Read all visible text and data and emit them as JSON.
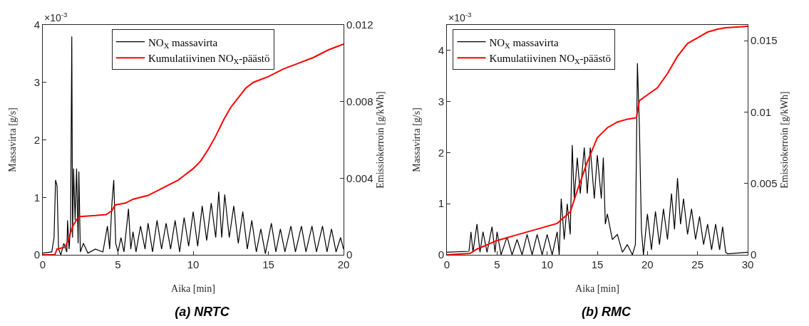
{
  "chart_data": [
    {
      "type": "line",
      "title": "(a) NRTC",
      "xlabel": "Aika [min]",
      "ylabel": "Massavirta [g/s]",
      "y2label": "Emissiokerroin [g/kWh]",
      "annotations": [
        "×10$^{-3}$"
      ],
      "legend": "top",
      "xlim": [
        0,
        20
      ],
      "xticks": [
        0,
        5,
        10,
        15,
        20
      ],
      "ylim": [
        0,
        4
      ],
      "yticks": [
        0,
        1,
        2,
        3,
        4
      ],
      "y2lim": [
        0,
        0.012
      ],
      "y2ticks": [
        0,
        0.004,
        0.008,
        0.012
      ],
      "series": [
        {
          "name": "NO$_{X}$ massavirta",
          "color": "#000000",
          "x": [
            0,
            0.6,
            0.75,
            0.85,
            0.95,
            1.05,
            1.2,
            1.4,
            1.6,
            1.65,
            1.75,
            1.85,
            1.93,
            1.98,
            2.05,
            2.15,
            2.25,
            2.35,
            2.4,
            2.5,
            2.7,
            3,
            3.5,
            4,
            4.3,
            4.45,
            4.6,
            4.72,
            4.85,
            5,
            5.2,
            5.4,
            5.7,
            5.85,
            6,
            6.2,
            6.5,
            6.8,
            7,
            7.3,
            7.6,
            7.9,
            8.2,
            8.5,
            8.8,
            9.1,
            9.4,
            9.7,
            10,
            10.3,
            10.6,
            10.9,
            11.2,
            11.5,
            11.7,
            11.9,
            12.1,
            12.4,
            12.7,
            13,
            13.3,
            13.6,
            13.9,
            14.2,
            14.5,
            14.8,
            15.2,
            15.5,
            15.8,
            16.1,
            16.5,
            16.8,
            17.2,
            17.5,
            17.9,
            18.2,
            18.6,
            18.9,
            19.2,
            19.5,
            19.8,
            20
          ],
          "values": [
            0.03,
            0.05,
            0.3,
            1.3,
            1.2,
            0.1,
            0,
            0.2,
            0.05,
            0.6,
            0.1,
            0.5,
            3.8,
            0.3,
            1.5,
            0.6,
            1.5,
            0.2,
            1.45,
            0.05,
            0.2,
            0.03,
            0.1,
            0.05,
            0.5,
            0.1,
            0.9,
            1.3,
            0.2,
            0.05,
            0.3,
            0.05,
            0.8,
            0.1,
            0.4,
            0.05,
            0.5,
            0.1,
            0.55,
            0.05,
            0.6,
            0.1,
            0.55,
            0.1,
            0.6,
            0.05,
            0.65,
            0.15,
            0.75,
            0.15,
            0.85,
            0.25,
            0.9,
            0.3,
            1.1,
            0.3,
            1.05,
            0.3,
            0.85,
            0.2,
            0.75,
            0.1,
            0.6,
            0.05,
            0.45,
            0.02,
            0.55,
            0.05,
            0.45,
            0.05,
            0.5,
            0.05,
            0.5,
            0.05,
            0.5,
            0.05,
            0.5,
            0.05,
            0.45,
            0.05,
            0.3,
            0.1
          ]
        },
        {
          "name": "Kumulatiivinen NO$_{X}$-päästö",
          "color": "#ff0000",
          "axis": "y2",
          "x": [
            0,
            0.8,
            0.95,
            1.5,
            1.7,
            2,
            2.3,
            2.5,
            3.5,
            4.2,
            4.6,
            4.8,
            5.5,
            6,
            7,
            8,
            9,
            10,
            10.5,
            11,
            11.5,
            12,
            12.5,
            13,
            13.5,
            14,
            15,
            16,
            17,
            18,
            19,
            20
          ],
          "values": [
            0,
            0,
            0.0003,
            0.0004,
            0.0008,
            0.0015,
            0.0019,
            0.002,
            0.00205,
            0.0021,
            0.0023,
            0.0026,
            0.0027,
            0.0029,
            0.0031,
            0.0035,
            0.0039,
            0.0045,
            0.0049,
            0.0055,
            0.0062,
            0.007,
            0.0077,
            0.0082,
            0.0087,
            0.009,
            0.0093,
            0.0097,
            0.01,
            0.0103,
            0.0107,
            0.011
          ]
        }
      ]
    },
    {
      "type": "line",
      "title": "(b) RMC",
      "xlabel": "Aika [min]",
      "ylabel": "Massavirta [g/s]",
      "y2label": "Emissiokerroin [g/kWh]",
      "annotations": [
        "×10$^{-3}$"
      ],
      "legend": "top left",
      "xlim": [
        0,
        30
      ],
      "xticks": [
        0,
        5,
        10,
        15,
        20,
        25,
        30
      ],
      "ylim": [
        0,
        4.5
      ],
      "yticks": [
        0,
        1,
        2,
        3,
        4
      ],
      "y2lim": [
        0,
        0.0161
      ],
      "y2ticks": [
        0,
        0.005,
        0.01,
        0.015
      ],
      "series": [
        {
          "name": "NO$_{X}$ massavirta",
          "color": "#000000",
          "x": [
            0,
            2.2,
            2.4,
            2.6,
            3,
            3.3,
            3.6,
            4,
            4.5,
            4.8,
            5,
            5.4,
            6,
            6.5,
            7,
            7.5,
            8,
            8.5,
            9,
            9.5,
            10,
            10.5,
            11,
            11.2,
            11.4,
            11.7,
            12,
            12.3,
            12.5,
            12.7,
            13,
            13.3,
            13.7,
            14,
            14.3,
            14.7,
            15,
            15.4,
            15.6,
            15.8,
            16,
            16.5,
            17,
            17.5,
            18,
            18.5,
            18.8,
            19,
            19.2,
            19.4,
            19.6,
            20,
            20.4,
            20.8,
            21.2,
            21.6,
            22,
            22.4,
            22.7,
            23,
            23.3,
            23.6,
            24,
            24.4,
            24.8,
            25.2,
            25.6,
            26,
            26.4,
            26.8,
            27.2,
            27.5,
            27.8,
            28,
            30
          ],
          "values": [
            0.05,
            0.07,
            0.45,
            0.05,
            0.6,
            0.05,
            0.45,
            0.05,
            0.55,
            0.05,
            0.45,
            0,
            0.35,
            0,
            0.3,
            0,
            0.4,
            0,
            0.4,
            0,
            0.4,
            0,
            0.45,
            0,
            1.1,
            0.3,
            1,
            0.4,
            2.15,
            1.1,
            1.9,
            1.2,
            2.1,
            1.2,
            2.1,
            1.1,
            1.95,
            1.1,
            1.9,
            0.6,
            0.8,
            0.3,
            0.4,
            0.05,
            0.2,
            0,
            0.2,
            3.75,
            2.5,
            0.5,
            0,
            0.8,
            0.1,
            0.85,
            0.2,
            0.9,
            0.3,
            1.2,
            0.5,
            1.5,
            0.6,
            1.1,
            0.4,
            0.9,
            0.3,
            0.75,
            0.2,
            0.6,
            0.1,
            0.6,
            0.1,
            0.55,
            0.05,
            0.02,
            0.05
          ]
        },
        {
          "name": "Kumulatiivinen NO$_{X}$-päästö",
          "color": "#ff0000",
          "axis": "y2",
          "x": [
            0,
            2.3,
            3,
            5,
            7,
            9,
            11,
            12.3,
            13,
            14,
            15,
            16,
            17,
            18,
            18.9,
            19.2,
            20,
            21,
            22,
            23,
            24,
            25,
            26,
            27,
            27.8,
            30
          ],
          "values": [
            0,
            0.0001,
            0.0004,
            0.001,
            0.0014,
            0.0018,
            0.0022,
            0.003,
            0.0045,
            0.0065,
            0.0082,
            0.0089,
            0.0093,
            0.0095,
            0.0096,
            0.0108,
            0.0112,
            0.0117,
            0.0127,
            0.0139,
            0.0148,
            0.0152,
            0.0156,
            0.0158,
            0.0159,
            0.016
          ]
        }
      ]
    }
  ]
}
